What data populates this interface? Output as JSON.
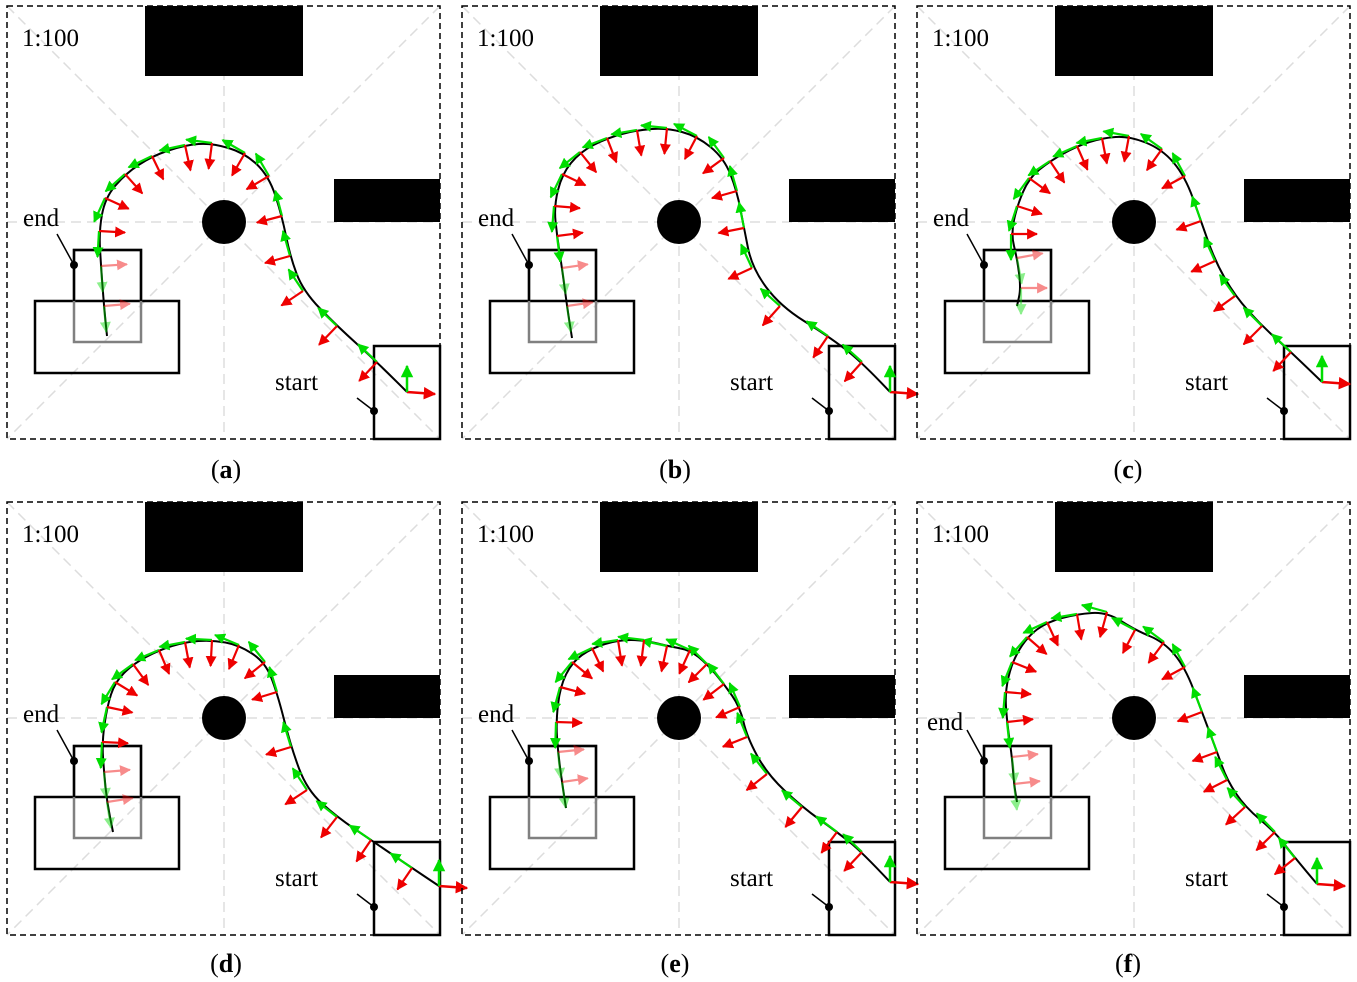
{
  "figure": {
    "panels": [
      {
        "id": "a",
        "scale_label": "1:100",
        "start_label": "start",
        "end_label": "end",
        "caption_open": "(",
        "caption_letter": "a",
        "caption_close": ")"
      },
      {
        "id": "b",
        "scale_label": "1:100",
        "start_label": "start",
        "end_label": "end",
        "caption_open": "(",
        "caption_letter": "b",
        "caption_close": ")"
      },
      {
        "id": "c",
        "scale_label": "1:100",
        "start_label": "start",
        "end_label": "end",
        "caption_open": "(",
        "caption_letter": "c",
        "caption_close": ")"
      },
      {
        "id": "d",
        "scale_label": "1:100",
        "start_label": "start",
        "end_label": "end",
        "caption_open": "(",
        "caption_letter": "d",
        "caption_close": ")"
      },
      {
        "id": "e",
        "scale_label": "1:100",
        "start_label": "start",
        "end_label": "end",
        "caption_open": "(",
        "caption_letter": "e",
        "caption_close": ")"
      },
      {
        "id": "f",
        "scale_label": "1:100",
        "start_label": "start",
        "end_label": "end",
        "caption_open": "(",
        "caption_letter": "f",
        "caption_close": ")"
      }
    ],
    "colors": {
      "path": "#000000",
      "heading_arrow": "#00dd00",
      "normal_arrow": "#ee0000",
      "obstacle": "#000000",
      "grid": "#dddddd",
      "parked_box": "#808080"
    }
  }
}
